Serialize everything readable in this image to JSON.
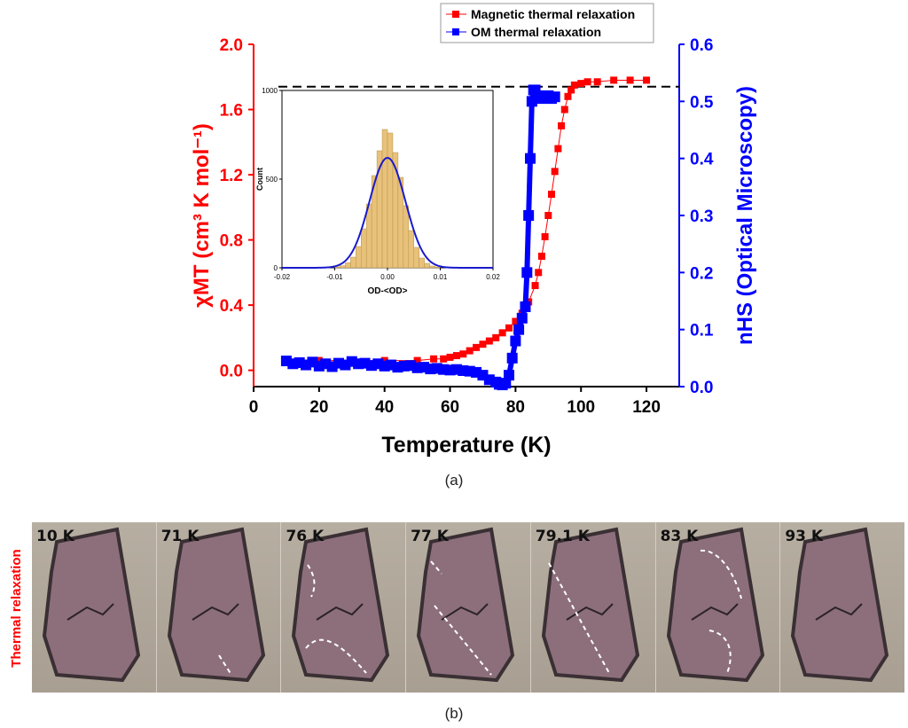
{
  "colors": {
    "magnetic": "#ff0000",
    "om": "#0000ff",
    "histogram_fill": "#e8c27a",
    "gaussian": "#1a1acc",
    "crystal": "#8d6f7c",
    "crystal_edge": "#3a3034",
    "dashed_front": "#ffffff"
  },
  "chart_data": [
    {
      "type": "scatter",
      "xlabel": "Temperature (K)",
      "ylabel_left": "χMT (cm³ K mol⁻¹)",
      "ylabel_right": "nHS (Optical Microscopy)",
      "xlim": [
        0,
        130
      ],
      "ylim_left": [
        -0.1,
        2.0
      ],
      "ylim_right": [
        0.0,
        0.6
      ],
      "x_ticks": [
        "0",
        "20",
        "40",
        "60",
        "80",
        "100",
        "120"
      ],
      "y_left_ticks": [
        "0.0",
        "0.4",
        "0.8",
        "1.2",
        "1.6",
        "2.0"
      ],
      "y_right_ticks": [
        "0.0",
        "0.1",
        "0.2",
        "0.3",
        "0.4",
        "0.5",
        "0.6"
      ],
      "legend_placement": "top-right",
      "reference_line": {
        "style": "dashed",
        "y_left": 1.74
      },
      "series": [
        {
          "name": "Magnetic thermal relaxation",
          "axis": "left",
          "marker": "square",
          "points": [
            [
              10,
              0.06
            ],
            [
              20,
              0.06
            ],
            [
              30,
              0.06
            ],
            [
              40,
              0.06
            ],
            [
              50,
              0.06
            ],
            [
              55,
              0.07
            ],
            [
              58,
              0.07
            ],
            [
              60,
              0.08
            ],
            [
              62,
              0.09
            ],
            [
              64,
              0.1
            ],
            [
              66,
              0.12
            ],
            [
              68,
              0.14
            ],
            [
              70,
              0.16
            ],
            [
              72,
              0.18
            ],
            [
              74,
              0.2
            ],
            [
              76,
              0.23
            ],
            [
              78,
              0.26
            ],
            [
              80,
              0.3
            ],
            [
              82,
              0.35
            ],
            [
              84,
              0.42
            ],
            [
              86,
              0.52
            ],
            [
              87,
              0.6
            ],
            [
              88,
              0.7
            ],
            [
              89,
              0.82
            ],
            [
              90,
              0.95
            ],
            [
              91,
              1.08
            ],
            [
              92,
              1.22
            ],
            [
              93,
              1.36
            ],
            [
              94,
              1.5
            ],
            [
              95,
              1.6
            ],
            [
              96,
              1.68
            ],
            [
              97,
              1.72
            ],
            [
              98,
              1.75
            ],
            [
              100,
              1.76
            ],
            [
              102,
              1.77
            ],
            [
              105,
              1.77
            ],
            [
              110,
              1.78
            ],
            [
              115,
              1.78
            ],
            [
              120,
              1.78
            ]
          ]
        },
        {
          "name": "OM thermal relaxation",
          "axis": "right",
          "marker": "square",
          "points": [
            [
              10,
              0.045
            ],
            [
              12,
              0.04
            ],
            [
              14,
              0.042
            ],
            [
              16,
              0.038
            ],
            [
              18,
              0.043
            ],
            [
              20,
              0.036
            ],
            [
              22,
              0.04
            ],
            [
              24,
              0.035
            ],
            [
              26,
              0.041
            ],
            [
              28,
              0.038
            ],
            [
              30,
              0.044
            ],
            [
              32,
              0.04
            ],
            [
              34,
              0.041
            ],
            [
              36,
              0.037
            ],
            [
              38,
              0.04
            ],
            [
              40,
              0.036
            ],
            [
              42,
              0.038
            ],
            [
              44,
              0.034
            ],
            [
              46,
              0.036
            ],
            [
              48,
              0.037
            ],
            [
              50,
              0.033
            ],
            [
              52,
              0.034
            ],
            [
              54,
              0.031
            ],
            [
              56,
              0.032
            ],
            [
              58,
              0.03
            ],
            [
              60,
              0.029
            ],
            [
              62,
              0.03
            ],
            [
              64,
              0.028
            ],
            [
              66,
              0.027
            ],
            [
              68,
              0.025
            ],
            [
              70,
              0.02
            ],
            [
              72,
              0.012
            ],
            [
              74,
              0.008
            ],
            [
              75,
              0.004
            ],
            [
              76,
              0.003
            ],
            [
              77,
              0.006
            ],
            [
              78,
              0.02
            ],
            [
              79,
              0.05
            ],
            [
              80,
              0.08
            ],
            [
              81,
              0.1
            ],
            [
              82,
              0.12
            ],
            [
              83,
              0.14
            ],
            [
              83.5,
              0.2
            ],
            [
              84,
              0.3
            ],
            [
              84.5,
              0.4
            ],
            [
              85,
              0.5
            ],
            [
              85.5,
              0.52
            ],
            [
              86,
              0.52
            ],
            [
              87,
              0.51
            ],
            [
              88,
              0.505
            ],
            [
              89,
              0.508
            ],
            [
              90,
              0.51
            ],
            [
              91,
              0.505
            ],
            [
              92,
              0.508
            ]
          ]
        }
      ]
    },
    {
      "type": "bar",
      "xlabel": "OD-<OD>",
      "ylabel": "Count",
      "xlim": [
        -0.02,
        0.02
      ],
      "ylim": [
        0,
        1000
      ],
      "x_ticks": [
        "-0.02",
        "-0.01",
        "0.00",
        "0.01",
        "0.02"
      ],
      "y_ticks": [
        "0",
        "500",
        "1000"
      ],
      "histogram": {
        "bin_centers": [
          -0.0095,
          -0.0085,
          -0.0075,
          -0.0065,
          -0.0055,
          -0.0045,
          -0.0035,
          -0.0025,
          -0.0015,
          -0.0005,
          0.0005,
          0.0015,
          0.0025,
          0.0035,
          0.0045,
          0.0055,
          0.0065,
          0.0075,
          0.0085,
          0.0095
        ],
        "counts": [
          5,
          12,
          28,
          60,
          120,
          220,
          360,
          520,
          660,
          780,
          760,
          650,
          510,
          350,
          210,
          115,
          55,
          25,
          10,
          4
        ]
      },
      "fit": {
        "type": "gaussian",
        "center": 0.0,
        "amplitude": 620,
        "sigma": 0.0034
      }
    }
  ],
  "caption_a": "(a)",
  "caption_b": "(b)",
  "strip_label": "Thermal relaxation",
  "panels": [
    {
      "temp": "10 K"
    },
    {
      "temp": "71 K"
    },
    {
      "temp": "76 K"
    },
    {
      "temp": "77 K"
    },
    {
      "temp": "79.1 K"
    },
    {
      "temp": "83 K"
    },
    {
      "temp": "93 K"
    }
  ]
}
